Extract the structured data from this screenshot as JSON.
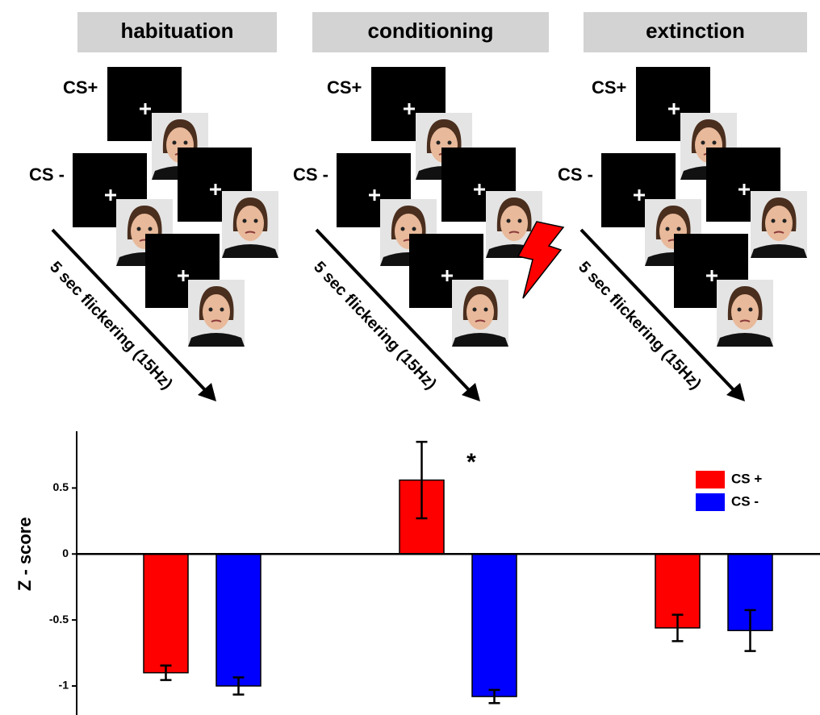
{
  "diagram": {
    "panels": [
      {
        "cs_plus_label": "CS+",
        "cs_minus_label": "CS -",
        "arrow_label": "5 sec flickering (15Hz)"
      },
      {
        "cs_plus_label": "CS+",
        "cs_minus_label": "CS -",
        "arrow_label": "5 sec flickering (15Hz)"
      },
      {
        "cs_plus_label": "CS+",
        "cs_minus_label": "CS -",
        "arrow_label": "5 sec flickering (15Hz)"
      }
    ]
  },
  "chart_data": {
    "type": "bar",
    "categories": [
      "habituation",
      "conditioning",
      "extinction"
    ],
    "y_label": "Z - score",
    "series": [
      {
        "name": "CS +",
        "color": "#ff0000",
        "values": [
          -0.9,
          0.56,
          -0.56
        ],
        "errors": [
          0.055,
          0.29,
          0.1
        ]
      },
      {
        "name": "CS -",
        "color": "#0000ff",
        "values": [
          -1.0,
          -1.08,
          -0.58
        ],
        "errors": [
          0.065,
          0.05,
          0.155
        ]
      }
    ],
    "annotation": "*",
    "ylim": [
      -1.22,
      0.93
    ],
    "yticks": [
      -1,
      -0.5,
      0,
      0.5
    ],
    "legend": "upper right"
  }
}
